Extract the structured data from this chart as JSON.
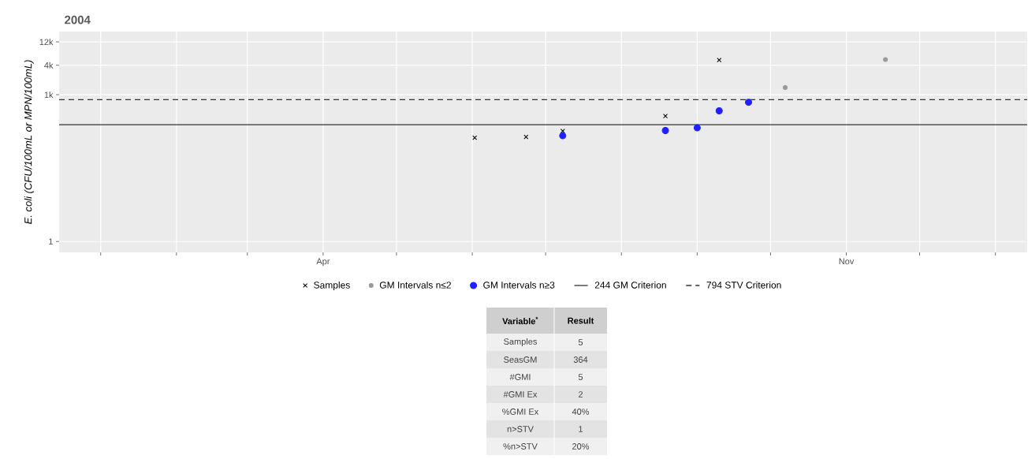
{
  "chart_data": {
    "type": "scatter",
    "title": "2004",
    "ylabel": "*E. coli* (CFU/100mL or MPN/100mL)",
    "log": true,
    "grid": true,
    "legend": "bottom",
    "xlim": [
      "2003-12-15",
      "2005-01-14"
    ],
    "xticks": [
      {
        "value": "2004-01-01",
        "label": null
      },
      {
        "value": "2004-02-01",
        "label": null
      },
      {
        "value": "2004-03-01",
        "label": null
      },
      {
        "value": "2004-04-01",
        "label": "Apr"
      },
      {
        "value": "2004-05-01",
        "label": null
      },
      {
        "value": "2004-06-01",
        "label": null
      },
      {
        "value": "2004-07-01",
        "label": null
      },
      {
        "value": "2004-08-01",
        "label": null
      },
      {
        "value": "2004-09-01",
        "label": null
      },
      {
        "value": "2004-10-01",
        "label": null
      },
      {
        "value": "2004-11-01",
        "label": "Nov"
      },
      {
        "value": "2004-12-01",
        "label": null
      },
      {
        "value": "2005-01-01",
        "label": null
      }
    ],
    "ylim": [
      0.6,
      19500
    ],
    "yticks": [
      {
        "value": 1,
        "label": "1"
      },
      {
        "value": 1000,
        "label": "1k"
      },
      {
        "value": 4000,
        "label": "4k"
      },
      {
        "value": 12000,
        "label": "12k"
      }
    ],
    "series": [
      {
        "name": "Samples",
        "color": "#000000",
        "marker": "cross",
        "x": [
          "2004-06-02",
          "2004-06-23",
          "2004-07-08",
          "2004-08-19",
          "2004-09-10"
        ],
        "values": [
          132,
          137,
          181,
          366,
          5100
        ]
      },
      {
        "name": "GM Intervals n≤2",
        "color": "#999999",
        "marker": "circle",
        "x": [
          "2004-10-07",
          "2004-11-17"
        ],
        "values": [
          1400,
          5200
        ]
      },
      {
        "name": "GM Intervals n≥3",
        "color": "#1f1fff",
        "marker": "circle",
        "x": [
          "2004-07-08",
          "2004-08-19",
          "2004-09-01",
          "2004-09-10",
          "2004-09-22"
        ],
        "values": [
          145,
          185,
          210,
          468,
          700
        ]
      }
    ],
    "ref_lines": [
      {
        "axis": "y",
        "value": 244,
        "label": "244 GM Criterion",
        "color": "#333333",
        "line_style": "solid"
      },
      {
        "axis": "y",
        "value": 794,
        "label": "794 STV Criterion",
        "color": "#333333",
        "line_style": "dashed"
      }
    ],
    "annotations": [
      "Variable$^{*}$",
      "Result",
      "Samples",
      "5",
      "SeasGM",
      "364",
      "#GMI",
      "5",
      "#GMI Ex",
      "2",
      "%GMI Ex",
      "40%",
      "n>STV",
      "1",
      "%n>STV",
      "20%"
    ]
  }
}
